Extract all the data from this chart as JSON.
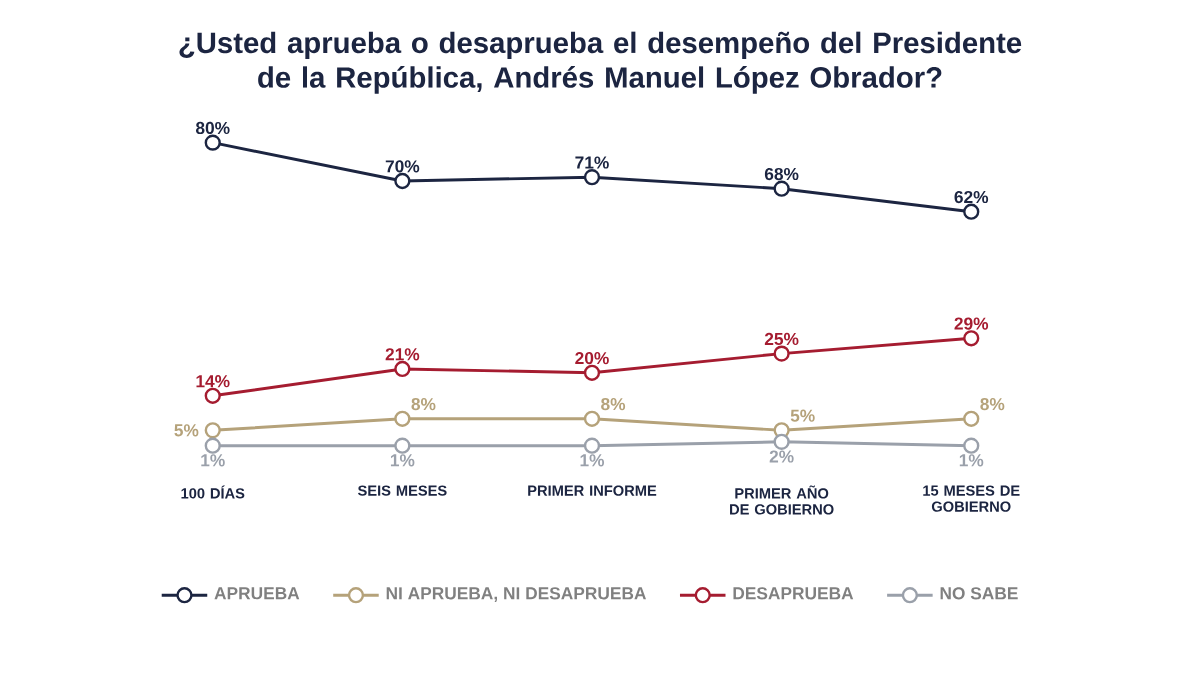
{
  "chart_data": {
    "type": "line",
    "title": "¿Usted aprueba o desaprueba el desempeño del Presidente de la República, Andrés Manuel López Obrador?",
    "categories": [
      "100 DÍAS",
      "SEIS MESES",
      "PRIMER INFORME",
      "PRIMER AÑO DE GOBIERNO",
      "15 MESES DE GOBIERNO"
    ],
    "series": [
      {
        "name": "APRUEBA",
        "color": "#1c2541",
        "values": [
          80,
          70,
          71,
          68,
          62
        ],
        "value_labels": [
          "80%",
          "70%",
          "71%",
          "68%",
          "62%"
        ]
      },
      {
        "name": "NI APRUEBA, NI DESAPRUEBA",
        "color": "#b5a27a",
        "values": [
          5,
          8,
          8,
          5,
          8
        ],
        "value_labels": [
          "5%",
          "8%",
          "8%",
          "5%",
          "8%"
        ]
      },
      {
        "name": "DESAPRUEBA",
        "color": "#a51c30",
        "values": [
          14,
          21,
          20,
          25,
          29
        ],
        "value_labels": [
          "14%",
          "21%",
          "20%",
          "25%",
          "29%"
        ]
      },
      {
        "name": "NO SABE",
        "color": "#9aa0aa",
        "values": [
          1,
          1,
          1,
          2,
          1
        ],
        "value_labels": [
          "1%",
          "1%",
          "1%",
          "2%",
          "1%"
        ]
      }
    ],
    "legend": "bottom",
    "marker": "circle",
    "line_style": "solid",
    "grid": false
  }
}
